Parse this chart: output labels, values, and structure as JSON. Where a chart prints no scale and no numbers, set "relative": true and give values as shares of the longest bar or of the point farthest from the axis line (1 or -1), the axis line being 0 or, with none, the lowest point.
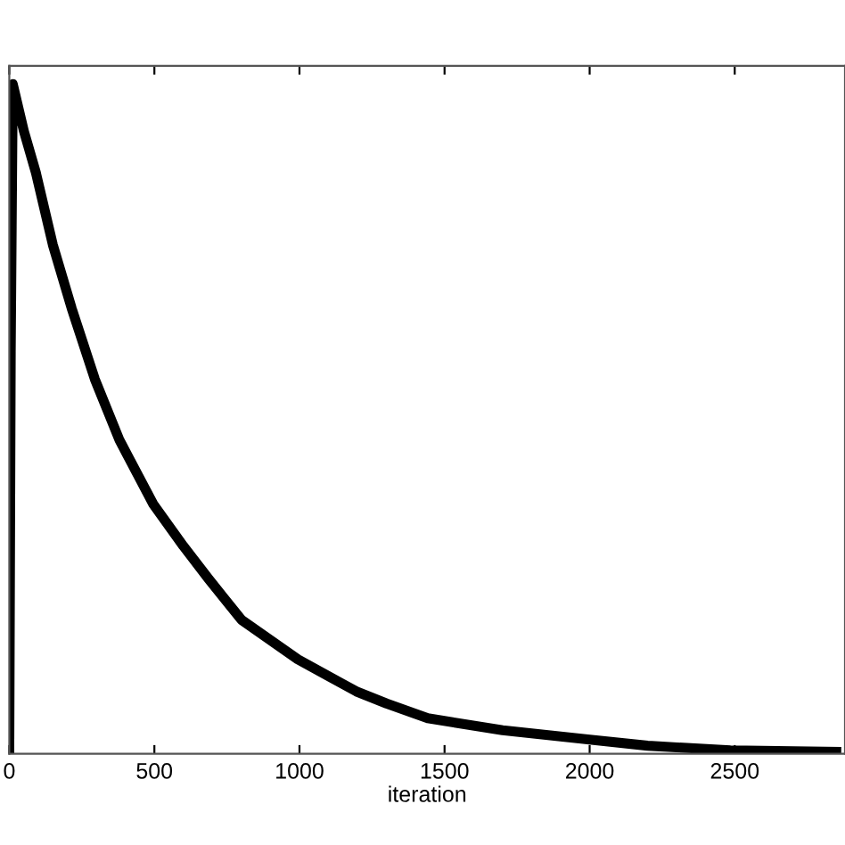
{
  "chart_data": {
    "type": "line",
    "xlabel": "iteration",
    "relative": true,
    "xlim": [
      0,
      2880
    ],
    "xticks": [
      0,
      500,
      1000,
      1500,
      2000,
      2500
    ],
    "tick_labels": "x",
    "grid": false,
    "legend": false,
    "series": [
      {
        "color": "#000000",
        "x": [
          0,
          5,
          12,
          50,
          92,
          150,
          215,
          295,
          380,
          497,
          600,
          687,
          800,
          994,
          1196,
          1300,
          1442,
          1700,
          2000,
          2200,
          2485,
          2850
        ],
        "values": [
          0,
          0.6,
          1,
          0.93,
          0.867,
          0.76,
          0.665,
          0.559,
          0.468,
          0.372,
          0.31,
          0.261,
          0.2,
          0.141,
          0.093,
          0.075,
          0.053,
          0.035,
          0.021,
          0.012,
          0.005,
          0.003
        ]
      }
    ]
  }
}
